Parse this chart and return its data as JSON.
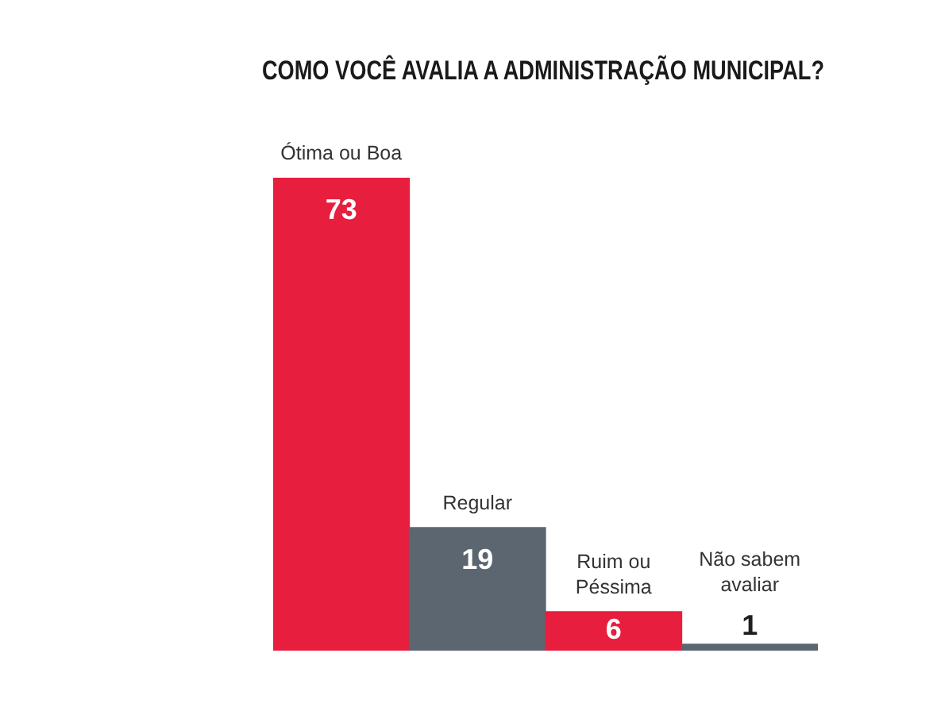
{
  "chart_data": {
    "type": "bar",
    "title": "COMO VOCÊ AVALIA A ADMINISTRAÇÃO MUNICIPAL?",
    "categories": [
      "Ótima ou Boa",
      "Regular",
      "Ruim ou Péssima",
      "Não sabem avaliar"
    ],
    "values": [
      73,
      19,
      6,
      1
    ],
    "colors": [
      "#e81e3e",
      "#5b6670",
      "#e81e3e",
      "#5b6670"
    ],
    "data_labels": true,
    "tick_labels": "x"
  }
}
